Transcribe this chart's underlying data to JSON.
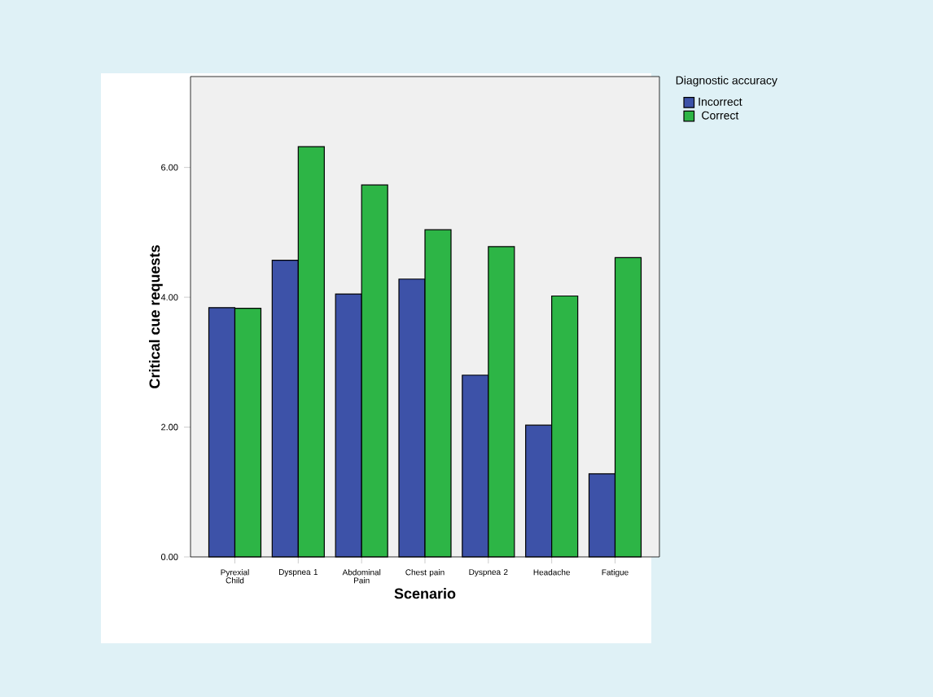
{
  "chart_data": {
    "type": "bar",
    "xlabel": "Scenario",
    "ylabel": "Critical cue requests",
    "legend_title": "Diagnostic accuracy",
    "categories": [
      "Pyrexial Child",
      "Dyspnea 1",
      "Abdominal Pain",
      "Chest pain",
      "Dyspnea 2",
      "Headache",
      "Fatigue"
    ],
    "series": [
      {
        "name": "Incorrect",
        "color": "#3d52a8",
        "values": [
          3.84,
          4.57,
          4.05,
          4.28,
          2.8,
          2.03,
          1.28
        ]
      },
      {
        "name": "Correct",
        "color": "#2db546",
        "values": [
          3.83,
          6.32,
          5.73,
          5.04,
          4.78,
          4.02,
          4.61
        ]
      }
    ],
    "ylim": [
      0,
      7.4
    ],
    "yticks": [
      {
        "value": 0,
        "label": "0.00"
      },
      {
        "value": 2,
        "label": "2.00"
      },
      {
        "value": 4,
        "label": "4.00"
      },
      {
        "value": 6,
        "label": "6.00"
      }
    ],
    "grid": false,
    "legend": "top right"
  }
}
